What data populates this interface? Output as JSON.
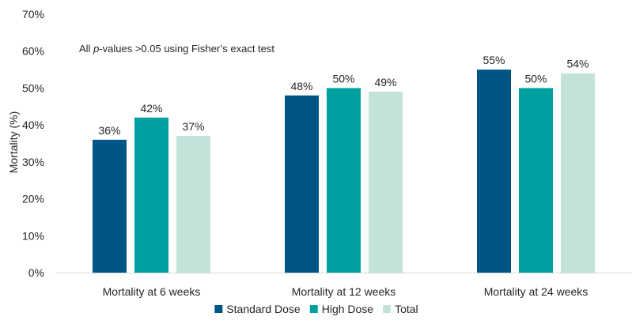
{
  "chart_data": {
    "type": "bar",
    "title": "",
    "xlabel": "",
    "ylabel": "Mortality (%)",
    "ylim": [
      0,
      70
    ],
    "yticks": [
      0,
      10,
      20,
      30,
      40,
      50,
      60,
      70
    ],
    "ytick_suffix": "%",
    "grid": false,
    "legend_position": "bottom",
    "categories": [
      "Mortality at 6 weeks",
      "Mortality at 12 weeks",
      "Mortality at 24 weeks"
    ],
    "series": [
      {
        "name": "Standard Dose",
        "color": "#005587",
        "values": [
          36,
          48,
          55
        ]
      },
      {
        "name": "High Dose",
        "color": "#00A0A0",
        "values": [
          42,
          50,
          50
        ]
      },
      {
        "name": "Total",
        "color": "#C2E2DA",
        "values": [
          37,
          49,
          54
        ]
      }
    ],
    "data_label_suffix": "%",
    "annotation": {
      "prefix": "All ",
      "italic": "p",
      "suffix": "-values >0.05 using Fisher’s exact test"
    }
  }
}
